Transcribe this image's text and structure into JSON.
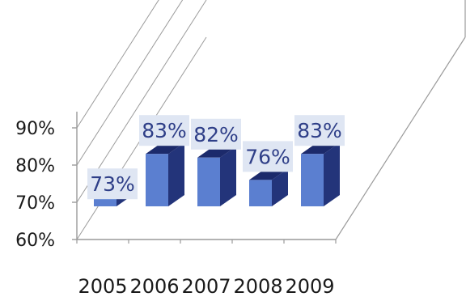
{
  "chart_data": {
    "type": "bar",
    "title": "",
    "xlabel": "",
    "ylabel": "",
    "categories": [
      "2005",
      "2006",
      "2007",
      "2008",
      "2009"
    ],
    "values": [
      73,
      83,
      82,
      76,
      83
    ],
    "data_labels": [
      "73%",
      "83%",
      "82%",
      "76%",
      "83%"
    ],
    "ylim": [
      60,
      90
    ],
    "yticks": [
      60,
      70,
      80,
      90
    ],
    "ytick_labels": [
      "60%",
      "70%",
      "80%",
      "90%"
    ],
    "grid": true,
    "style": "3d",
    "colors": {
      "bar_front": "#5b7fd0",
      "bar_side": "#23347a",
      "bar_top": "#1c2a6b",
      "label_box": "#dfe6f3",
      "label_text": "#2f3f88",
      "tick_text": "#1a1a1a",
      "grid": "#9a9a9a"
    }
  }
}
